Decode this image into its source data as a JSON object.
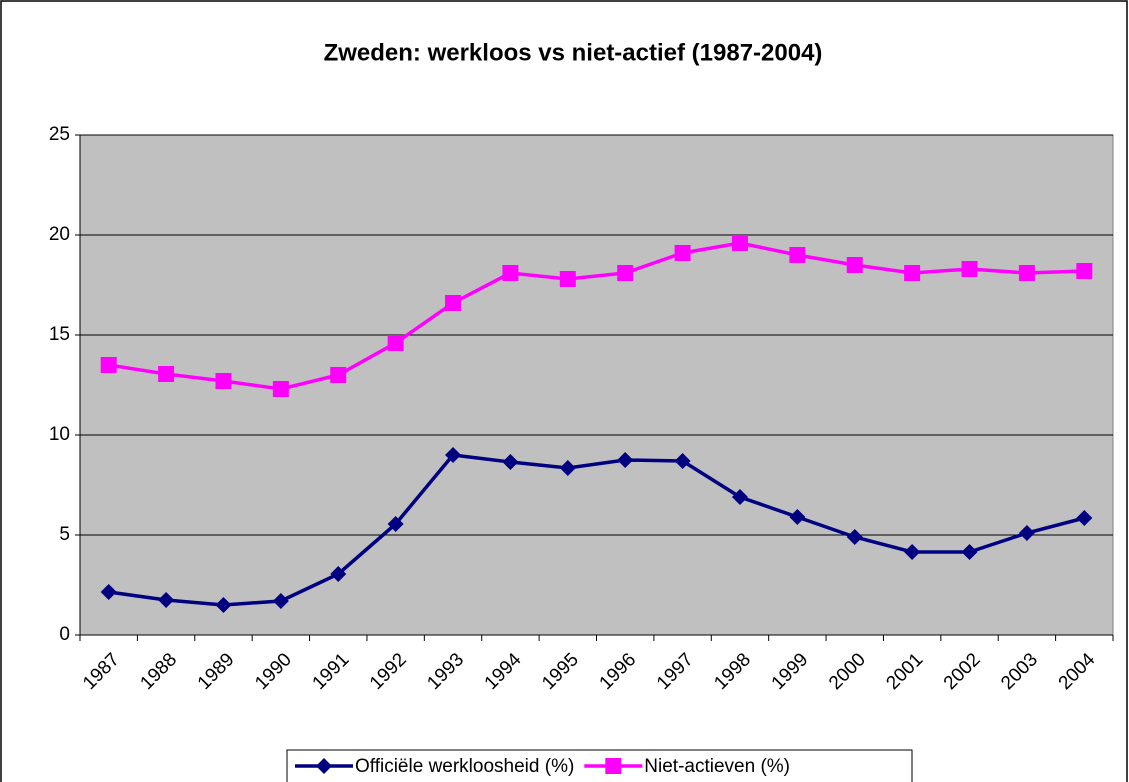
{
  "chart_data": {
    "type": "line",
    "title": "Zweden: werkloos vs niet-actief (1987-2004)",
    "categories": [
      "1987",
      "1988",
      "1989",
      "1990",
      "1991",
      "1992",
      "1993",
      "1994",
      "1995",
      "1996",
      "1997",
      "1998",
      "1999",
      "2000",
      "2001",
      "2002",
      "2003",
      "2004"
    ],
    "series": [
      {
        "name": "Officiële werkloosheid (%)",
        "color": "#000080",
        "marker": "diamond",
        "values": [
          2.15,
          1.75,
          1.5,
          1.7,
          3.05,
          5.55,
          9.0,
          8.65,
          8.35,
          8.75,
          8.7,
          6.9,
          5.9,
          4.9,
          4.15,
          4.15,
          5.1,
          5.85
        ]
      },
      {
        "name": "Niet-actieven (%)",
        "color": "#ff00ff",
        "marker": "square",
        "values": [
          13.5,
          13.05,
          12.7,
          12.3,
          13.0,
          14.6,
          16.6,
          18.1,
          17.8,
          18.1,
          19.1,
          19.6,
          19.0,
          18.5,
          18.1,
          18.3,
          18.1,
          18.2
        ]
      }
    ],
    "ylim": [
      0,
      25
    ],
    "yticks": [
      0,
      5,
      10,
      15,
      20,
      25
    ],
    "grid": true,
    "legend": "bottom",
    "plot_background": "#c0c0c0"
  }
}
